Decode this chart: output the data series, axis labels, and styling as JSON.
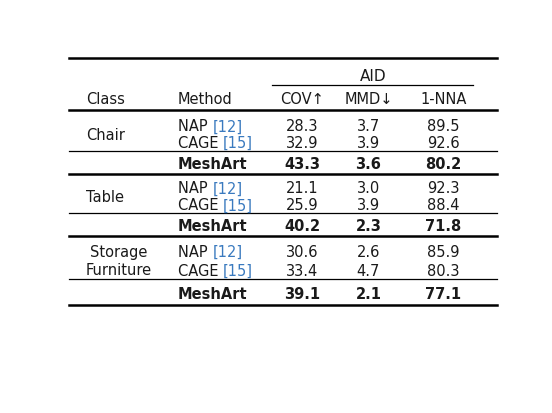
{
  "aid_label": "AID",
  "col_headers": [
    "Class",
    "Method",
    "COV↑",
    "MMD↓",
    "1-NNA"
  ],
  "rows": [
    {
      "class": "Chair",
      "method_name": "NAP ",
      "method_ref": "[12]",
      "cov": "28.3",
      "mmd": "3.7",
      "nna": "89.5",
      "bold": false
    },
    {
      "class": "",
      "method_name": "CAGE ",
      "method_ref": "[15]",
      "cov": "32.9",
      "mmd": "3.9",
      "nna": "92.6",
      "bold": false
    },
    {
      "class": "",
      "method_name": "MeshArt",
      "method_ref": "",
      "cov": "43.3",
      "mmd": "3.6",
      "nna": "80.2",
      "bold": true
    },
    {
      "class": "Table",
      "method_name": "NAP ",
      "method_ref": "[12]",
      "cov": "21.1",
      "mmd": "3.0",
      "nna": "92.3",
      "bold": false
    },
    {
      "class": "",
      "method_name": "CAGE ",
      "method_ref": "[15]",
      "cov": "25.9",
      "mmd": "3.9",
      "nna": "88.4",
      "bold": false
    },
    {
      "class": "",
      "method_name": "MeshArt",
      "method_ref": "",
      "cov": "40.2",
      "mmd": "2.3",
      "nna": "71.8",
      "bold": true
    },
    {
      "class": "Storage\nFurniture",
      "method_name": "NAP ",
      "method_ref": "[12]",
      "cov": "30.6",
      "mmd": "2.6",
      "nna": "85.9",
      "bold": false
    },
    {
      "class": "",
      "method_name": "CAGE ",
      "method_ref": "[15]",
      "cov": "33.4",
      "mmd": "4.7",
      "nna": "80.3",
      "bold": false
    },
    {
      "class": "",
      "method_name": "MeshArt",
      "method_ref": "",
      "cov": "39.1",
      "mmd": "2.1",
      "nna": "77.1",
      "bold": true
    }
  ],
  "background_color": "#ffffff",
  "text_color": "#1a1a1a",
  "ref_color": "#3a7abf",
  "thick_lw": 1.8,
  "thin_lw": 0.9,
  "font_size": 10.5
}
